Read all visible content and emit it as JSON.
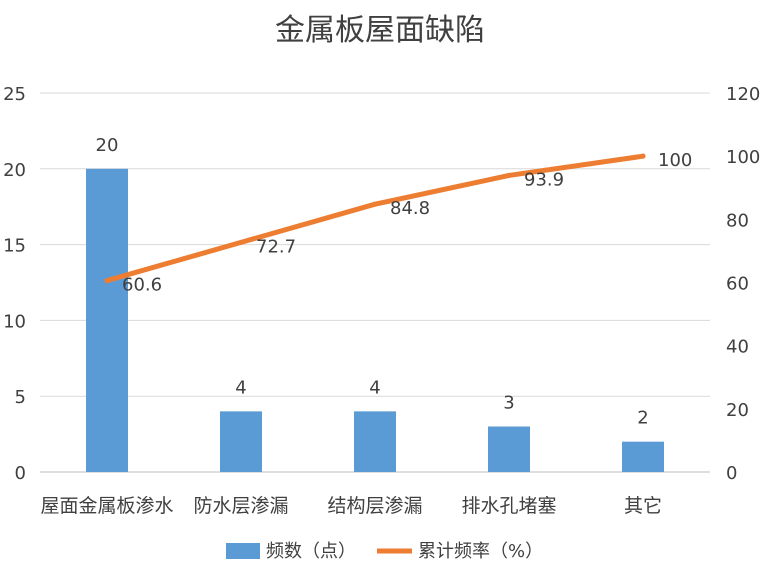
{
  "chart_data": {
    "type": "bar",
    "title": "金属板屋面缺陷",
    "categories": [
      "屋面金属板渗水",
      "防水层渗漏",
      "结构层渗漏",
      "排水孔堵塞",
      "其它"
    ],
    "series": [
      {
        "name": "频数（点）",
        "type": "bar",
        "axis": "left",
        "color": "#5b9bd5",
        "values": [
          20,
          4,
          4,
          3,
          2
        ]
      },
      {
        "name": "累计频率（%）",
        "type": "line",
        "axis": "right",
        "color": "#ed7d31",
        "values": [
          60.6,
          72.7,
          84.8,
          93.9,
          100
        ]
      }
    ],
    "y_left": {
      "min": 0,
      "max": 25,
      "ticks": [
        0,
        5,
        10,
        15,
        20,
        25
      ]
    },
    "y_right": {
      "min": 0,
      "max": 120,
      "ticks": [
        0,
        20,
        40,
        60,
        80,
        100,
        120
      ]
    },
    "grid": true,
    "legend_position": "bottom",
    "data_labels": true
  }
}
